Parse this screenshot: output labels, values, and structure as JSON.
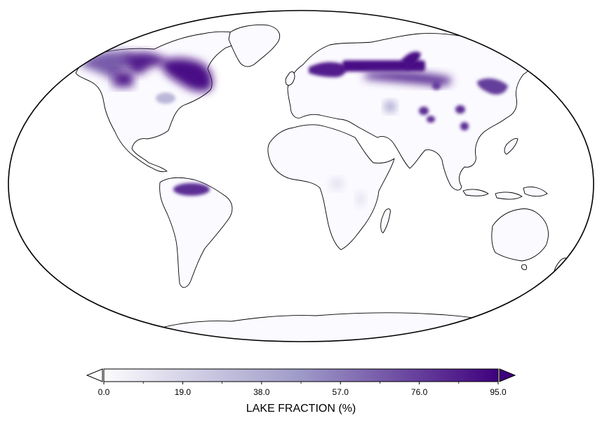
{
  "map": {
    "projection": "Robinson",
    "ocean_color": "#ffffff",
    "land_fill_color": "#fbfaff",
    "coastline_color": "#000000",
    "border_color": "#000000"
  },
  "field": {
    "variable": "lake fraction",
    "colormap": "Purples",
    "extend": "both",
    "regions": [
      {
        "name": "Alaska / Yukon",
        "level": 0.7
      },
      {
        "name": "Northwest Territories",
        "level": 0.9
      },
      {
        "name": "Hudson Bay region",
        "level": 0.95
      },
      {
        "name": "Great Lakes",
        "level": 0.35
      },
      {
        "name": "Amazon basin",
        "level": 0.85
      },
      {
        "name": "East Africa lakes",
        "level": 0.15
      },
      {
        "name": "Scandinavia / Finland",
        "level": 0.9
      },
      {
        "name": "Northern Russia",
        "level": 0.95
      },
      {
        "name": "West Siberia",
        "level": 0.85
      },
      {
        "name": "East Siberia",
        "level": 0.8
      },
      {
        "name": "Kamchatka",
        "level": 0.7
      },
      {
        "name": "Caspian / Aral",
        "level": 0.5
      },
      {
        "name": "Central Asia lakes",
        "level": 0.85
      }
    ]
  },
  "colorbar": {
    "title": "LAKE FRACTION (%)",
    "min": 0.0,
    "max": 95.0,
    "ticks": [
      "0.0",
      "19.0",
      "38.0",
      "57.0",
      "76.0",
      "95.0"
    ],
    "color_low": "#fcfbfd",
    "color_mid": "#9e9ac8",
    "color_high": "#3f007d",
    "under_color": "#ffffff",
    "over_color": "#3f007d"
  }
}
